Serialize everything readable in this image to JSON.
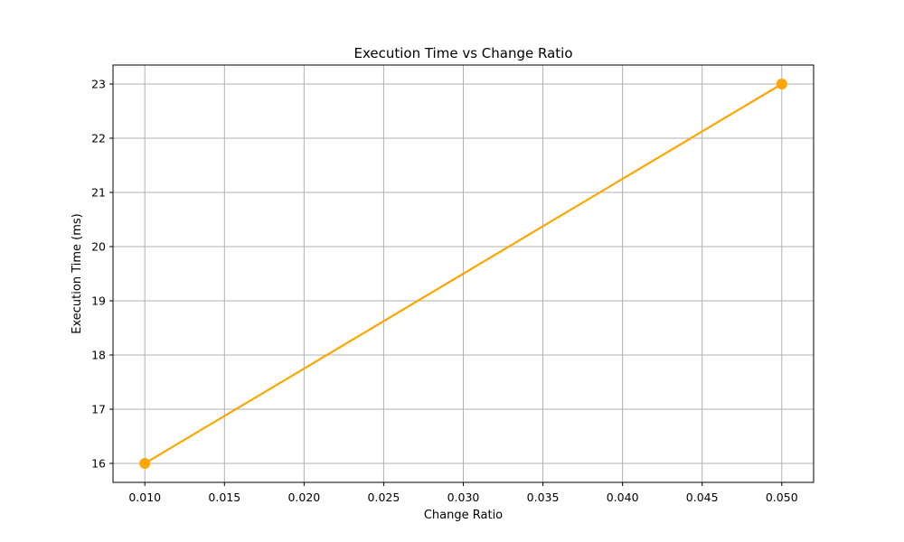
{
  "chart_data": {
    "type": "line",
    "title": "Execution Time vs Change Ratio",
    "xlabel": "Change Ratio",
    "ylabel": "Execution Time (ms)",
    "x": [
      0.01,
      0.05
    ],
    "series": [
      {
        "values": [
          16,
          23
        ],
        "color": "#ffa500"
      }
    ],
    "xlim": [
      0.008,
      0.052
    ],
    "ylim": [
      15.65,
      23.35
    ],
    "xticks": [
      0.01,
      0.015,
      0.02,
      0.025,
      0.03,
      0.035,
      0.04,
      0.045,
      0.05
    ],
    "xtick_labels": [
      "0.010",
      "0.015",
      "0.020",
      "0.025",
      "0.030",
      "0.035",
      "0.040",
      "0.045",
      "0.050"
    ],
    "yticks": [
      16,
      17,
      18,
      19,
      20,
      21,
      22,
      23
    ],
    "ytick_labels": [
      "16",
      "17",
      "18",
      "19",
      "20",
      "21",
      "22",
      "23"
    ],
    "grid": true,
    "markers": true
  }
}
